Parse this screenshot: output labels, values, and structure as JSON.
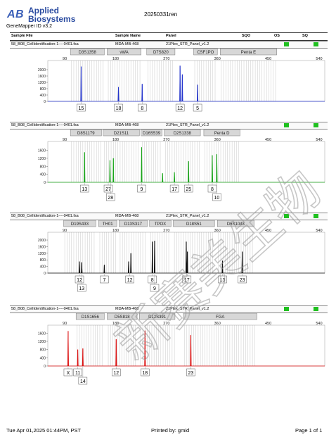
{
  "header": {
    "brand_line1": "Applied",
    "brand_line2": "Biosystems",
    "run_id": "20250331ren",
    "version": "GeneMapper ID v3.2",
    "columns": [
      "Sample File",
      "Sample Name",
      "Panel",
      "SQO",
      "OS",
      "SQ"
    ]
  },
  "footer": {
    "date": "Tue Apr 01,2025 01:44PM, PST",
    "printed_by": "Printed by: gmid",
    "page": "Page 1 of 1"
  },
  "watermark_text": "新赛美生物",
  "colors": {
    "blue": "#2233cc",
    "green": "#1aa51a",
    "black": "#111111",
    "red": "#dd1111",
    "quality": "#1fc01f"
  },
  "chart_data": [
    {
      "type": "line",
      "dye": "blue",
      "sample_file": "58_B08_CellIdentification-1----0401.fsa",
      "sample_name": "MDA-MB-468",
      "panel": "21Plex_STR_Panel_v1.2",
      "x_ticks": [
        90,
        180,
        270,
        360,
        450,
        540
      ],
      "y_ticks": [
        0,
        400,
        800,
        1200,
        1600,
        2000
      ],
      "ylim": [
        0,
        2400
      ],
      "xlim": [
        60,
        550
      ],
      "markers": [
        {
          "label": "D3S1358",
          "start": 100,
          "end": 160
        },
        {
          "label": "vWA",
          "start": 165,
          "end": 225
        },
        {
          "label": "D7S820",
          "start": 235,
          "end": 285
        },
        {
          "label": "CSF1PO",
          "start": 318,
          "end": 360
        },
        {
          "label": "Penta E",
          "start": 365,
          "end": 465
        }
      ],
      "peaks": [
        {
          "x": 119,
          "h": 2200
        },
        {
          "x": 185,
          "h": 900
        },
        {
          "x": 227,
          "h": 1100
        },
        {
          "x": 294,
          "h": 2250
        },
        {
          "x": 298,
          "h": 1700
        },
        {
          "x": 325,
          "h": 1050
        }
      ],
      "allele_labels": [
        {
          "text": "15",
          "x": 119,
          "row": 0
        },
        {
          "text": "18",
          "x": 185,
          "row": 0
        },
        {
          "text": "8",
          "x": 227,
          "row": 0
        },
        {
          "text": "12",
          "x": 294,
          "row": 0
        },
        {
          "text": "5",
          "x": 325,
          "row": 0
        }
      ]
    },
    {
      "type": "line",
      "dye": "green",
      "sample_file": "58_B08_CellIdentification-1----0401.fsa",
      "sample_name": "MDA-MB-468",
      "panel": "21Plex_STR_Panel_v1.2",
      "x_ticks": [
        90,
        180,
        270,
        360,
        450,
        540
      ],
      "y_ticks": [
        0,
        400,
        800,
        1200,
        1600
      ],
      "ylim": [
        0,
        1900
      ],
      "xlim": [
        60,
        550
      ],
      "markers": [
        {
          "label": "D8S1179",
          "start": 100,
          "end": 155
        },
        {
          "label": "D21S11",
          "start": 158,
          "end": 222
        },
        {
          "label": "D16S539",
          "start": 225,
          "end": 262
        },
        {
          "label": "D2S1338",
          "start": 266,
          "end": 330
        },
        {
          "label": "Penta D",
          "start": 336,
          "end": 400
        }
      ],
      "peaks": [
        {
          "x": 125,
          "h": 1500
        },
        {
          "x": 170,
          "h": 1100
        },
        {
          "x": 176,
          "h": 1200
        },
        {
          "x": 226,
          "h": 1750
        },
        {
          "x": 263,
          "h": 450
        },
        {
          "x": 284,
          "h": 500
        },
        {
          "x": 309,
          "h": 1050
        },
        {
          "x": 351,
          "h": 1350
        },
        {
          "x": 359,
          "h": 1400
        }
      ],
      "allele_labels": [
        {
          "text": "13",
          "x": 125,
          "row": 0
        },
        {
          "text": "27",
          "x": 167,
          "row": 0
        },
        {
          "text": "28",
          "x": 171,
          "row": 1
        },
        {
          "text": "9",
          "x": 226,
          "row": 0
        },
        {
          "text": "17",
          "x": 284,
          "row": 0
        },
        {
          "text": "25",
          "x": 309,
          "row": 0
        },
        {
          "text": "8",
          "x": 351,
          "row": 0
        },
        {
          "text": "10",
          "x": 359,
          "row": 1
        }
      ]
    },
    {
      "type": "line",
      "dye": "black",
      "sample_file": "58_B08_CellIdentification-1----0401.fsa",
      "sample_name": "MDA-MB-468",
      "panel": "21Plex_STR_Panel_v1.2",
      "x_ticks": [
        90,
        180,
        270,
        360,
        450,
        540
      ],
      "y_ticks": [
        0,
        400,
        800,
        1200,
        1600,
        2000
      ],
      "ylim": [
        0,
        2300
      ],
      "xlim": [
        60,
        550
      ],
      "markers": [
        {
          "label": "D19S433",
          "start": 88,
          "end": 145
        },
        {
          "label": "TH01",
          "start": 150,
          "end": 182
        },
        {
          "label": "D13S317",
          "start": 186,
          "end": 236
        },
        {
          "label": "TPOX",
          "start": 240,
          "end": 278
        },
        {
          "label": "D18S51",
          "start": 282,
          "end": 355
        },
        {
          "label": "D6S1043",
          "start": 360,
          "end": 425
        }
      ],
      "peaks": [
        {
          "x": 116,
          "h": 700
        },
        {
          "x": 120,
          "h": 650
        },
        {
          "x": 160,
          "h": 500
        },
        {
          "x": 203,
          "h": 700
        },
        {
          "x": 207,
          "h": 1200
        },
        {
          "x": 245,
          "h": 1900
        },
        {
          "x": 249,
          "h": 1950
        },
        {
          "x": 305,
          "h": 1900
        },
        {
          "x": 307,
          "h": 1300
        },
        {
          "x": 369,
          "h": 750
        },
        {
          "x": 404,
          "h": 1300
        }
      ],
      "allele_labels": [
        {
          "text": "12",
          "x": 116,
          "row": 0
        },
        {
          "text": "13",
          "x": 120,
          "row": 1
        },
        {
          "text": "7",
          "x": 160,
          "row": 0
        },
        {
          "text": "12",
          "x": 205,
          "row": 0
        },
        {
          "text": "8",
          "x": 245,
          "row": 0
        },
        {
          "text": "9",
          "x": 249,
          "row": 1
        },
        {
          "text": "17",
          "x": 306,
          "row": 0
        },
        {
          "text": "13",
          "x": 369,
          "row": 0
        },
        {
          "text": "23",
          "x": 404,
          "row": 0
        }
      ]
    },
    {
      "type": "line",
      "dye": "red",
      "sample_file": "58_B08_CellIdentification-1----0401.fsa",
      "sample_name": "MDA-MB-468",
      "panel": "21Plex_STR_Panel_v1.2",
      "x_ticks": [
        90,
        180,
        270,
        360,
        450,
        540
      ],
      "y_ticks": [
        0,
        400,
        800,
        1200,
        1600
      ],
      "ylim": [
        0,
        1850
      ],
      "xlim": [
        60,
        550
      ],
      "markers": [
        {
          "label": "D1S1656",
          "start": 110,
          "end": 160
        },
        {
          "label": "D5S818",
          "start": 165,
          "end": 218
        },
        {
          "label": "D12S391",
          "start": 222,
          "end": 285
        },
        {
          "label": "FGA",
          "start": 300,
          "end": 430
        }
      ],
      "peaks": [
        {
          "x": 96,
          "h": 1700
        },
        {
          "x": 113,
          "h": 800
        },
        {
          "x": 122,
          "h": 850
        },
        {
          "x": 181,
          "h": 1300
        },
        {
          "x": 232,
          "h": 1720
        },
        {
          "x": 313,
          "h": 1500
        }
      ],
      "allele_labels": [
        {
          "text": "X",
          "x": 96,
          "row": 0
        },
        {
          "text": "11",
          "x": 113,
          "row": 0
        },
        {
          "text": "14",
          "x": 122,
          "row": 1
        },
        {
          "text": "12",
          "x": 181,
          "row": 0
        },
        {
          "text": "18",
          "x": 232,
          "row": 0
        },
        {
          "text": "23",
          "x": 313,
          "row": 0
        }
      ]
    }
  ]
}
